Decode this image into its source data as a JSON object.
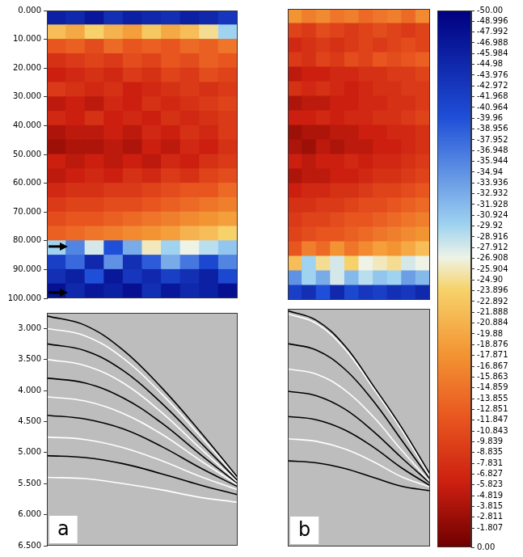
{
  "chart_data": [
    {
      "type": "heatmap",
      "tick_labels": "y",
      "grid": false,
      "xlim": [
        0,
        100
      ],
      "ylim": [
        0,
        100
      ],
      "yticks": [
        {
          "value": 0,
          "label": "0.000"
        },
        {
          "value": 10,
          "label": "10.000"
        },
        {
          "value": 20,
          "label": "20.000"
        },
        {
          "value": 30,
          "label": "30.000"
        },
        {
          "value": 40,
          "label": "40.000"
        },
        {
          "value": 50,
          "label": "50.000"
        },
        {
          "value": 60,
          "label": "60.000"
        },
        {
          "value": 70,
          "label": "70.000"
        },
        {
          "value": 80,
          "label": "80.000"
        },
        {
          "value": 90,
          "label": "90.000"
        },
        {
          "value": 100,
          "label": "100.000"
        }
      ],
      "arrows_at": [
        82,
        98
      ],
      "x": [
        5,
        15,
        25,
        35,
        45,
        55,
        65,
        75,
        85,
        95
      ],
      "y": [
        2.5,
        7.5,
        12.5,
        17.5,
        22.5,
        27.5,
        32.5,
        37.5,
        42.5,
        47.5,
        52.5,
        57.5,
        62.5,
        67.5,
        72.5,
        77.5,
        82.5,
        87.5,
        92.5,
        97.5
      ],
      "cells": [
        [
          -46,
          -45,
          -47,
          -44,
          -46,
          -45,
          -44,
          -46,
          -45,
          -43
        ],
        [
          -22,
          -20,
          -24,
          -21,
          -19,
          -23,
          -20,
          -22,
          -25,
          -30
        ],
        [
          -12,
          -13,
          -11,
          -14,
          -12,
          -13,
          -12,
          -14,
          -13,
          -15
        ],
        [
          -8,
          -9,
          -10,
          -9,
          -11,
          -10,
          -12,
          -11,
          -13,
          -12
        ],
        [
          -6,
          -7,
          -8,
          -7,
          -9,
          -8,
          -10,
          -9,
          -11,
          -10
        ],
        [
          -9,
          -8,
          -7,
          -8,
          -6,
          -7,
          -8,
          -9,
          -8,
          -9
        ],
        [
          -5,
          -6,
          -5,
          -7,
          -6,
          -8,
          -7,
          -8,
          -9,
          -10
        ],
        [
          -7,
          -6,
          -8,
          -6,
          -7,
          -6,
          -8,
          -7,
          -8,
          -9
        ],
        [
          -4,
          -5,
          -5,
          -6,
          -5,
          -7,
          -6,
          -8,
          -7,
          -9
        ],
        [
          -3,
          -4,
          -4,
          -5,
          -4,
          -6,
          -5,
          -7,
          -6,
          -8
        ],
        [
          -6,
          -5,
          -6,
          -5,
          -6,
          -5,
          -7,
          -6,
          -8,
          -9
        ],
        [
          -5,
          -6,
          -7,
          -6,
          -8,
          -7,
          -9,
          -8,
          -10,
          -11
        ],
        [
          -7,
          -8,
          -8,
          -9,
          -9,
          -10,
          -11,
          -12,
          -12,
          -14
        ],
        [
          -9,
          -10,
          -10,
          -11,
          -11,
          -12,
          -13,
          -14,
          -15,
          -16
        ],
        [
          -11,
          -12,
          -12,
          -13,
          -14,
          -15,
          -16,
          -17,
          -18,
          -19
        ],
        [
          -13,
          -14,
          -15,
          -16,
          -17,
          -18,
          -19,
          -21,
          -22,
          -24
        ],
        [
          -30,
          -36,
          -28,
          -40,
          -33,
          -26,
          -30,
          -27,
          -29,
          -31
        ],
        [
          -42,
          -38,
          -45,
          -35,
          -44,
          -39,
          -33,
          -37,
          -41,
          -36
        ],
        [
          -44,
          -46,
          -40,
          -47,
          -43,
          -45,
          -42,
          -44,
          -46,
          -41
        ],
        [
          -48,
          -45,
          -47,
          -46,
          -48,
          -44,
          -47,
          -45,
          -46,
          -48
        ]
      ]
    },
    {
      "type": "heatmap",
      "tick_labels": false,
      "grid": false,
      "xlim": [
        0,
        100
      ],
      "ylim": [
        0,
        100
      ],
      "x": [
        5,
        15,
        25,
        35,
        45,
        55,
        65,
        75,
        85,
        95
      ],
      "y": [
        2.5,
        7.5,
        12.5,
        17.5,
        22.5,
        27.5,
        32.5,
        37.5,
        42.5,
        47.5,
        52.5,
        57.5,
        62.5,
        67.5,
        72.5,
        77.5,
        82.5,
        87.5,
        92.5,
        97.5
      ],
      "cells": [
        [
          -18,
          -16,
          -17,
          -15,
          -16,
          -14,
          -15,
          -16,
          -14,
          -17
        ],
        [
          -10,
          -9,
          -11,
          -10,
          -9,
          -10,
          -11,
          -10,
          -9,
          -10
        ],
        [
          -7,
          -8,
          -9,
          -8,
          -9,
          -10,
          -9,
          -10,
          -11,
          -10
        ],
        [
          -9,
          -8,
          -10,
          -9,
          -11,
          -10,
          -12,
          -11,
          -12,
          -13
        ],
        [
          -5,
          -6,
          -6,
          -7,
          -7,
          -8,
          -8,
          -9,
          -9,
          -10
        ],
        [
          -8,
          -7,
          -8,
          -7,
          -6,
          -7,
          -8,
          -8,
          -9,
          -9
        ],
        [
          -4,
          -5,
          -5,
          -6,
          -6,
          -7,
          -7,
          -8,
          -8,
          -9
        ],
        [
          -6,
          -6,
          -7,
          -6,
          -7,
          -7,
          -8,
          -8,
          -9,
          -10
        ],
        [
          -3,
          -4,
          -4,
          -5,
          -5,
          -6,
          -6,
          -7,
          -7,
          -8
        ],
        [
          -4,
          -3,
          -5,
          -4,
          -5,
          -5,
          -6,
          -6,
          -7,
          -8
        ],
        [
          -6,
          -5,
          -6,
          -6,
          -7,
          -6,
          -7,
          -7,
          -8,
          -9
        ],
        [
          -4,
          -5,
          -5,
          -6,
          -6,
          -7,
          -8,
          -8,
          -9,
          -10
        ],
        [
          -6,
          -7,
          -7,
          -8,
          -8,
          -9,
          -10,
          -10,
          -11,
          -12
        ],
        [
          -8,
          -8,
          -9,
          -9,
          -10,
          -11,
          -11,
          -12,
          -13,
          -14
        ],
        [
          -9,
          -10,
          -10,
          -11,
          -12,
          -12,
          -13,
          -14,
          -15,
          -16
        ],
        [
          -10,
          -11,
          -12,
          -12,
          -13,
          -14,
          -15,
          -16,
          -17,
          -18
        ],
        [
          -12,
          -16,
          -14,
          -18,
          -15,
          -17,
          -19,
          -18,
          -20,
          -22
        ],
        [
          -22,
          -30,
          -25,
          -28,
          -24,
          -27,
          -26,
          -25,
          -28,
          -27
        ],
        [
          -35,
          -30,
          -33,
          -28,
          -32,
          -29,
          -31,
          -30,
          -34,
          -32
        ],
        [
          -42,
          -44,
          -40,
          -45,
          -41,
          -43,
          -42,
          -44,
          -43,
          -45
        ]
      ]
    },
    {
      "type": "line",
      "title": "a",
      "tick_labels": "y",
      "grid": false,
      "xlim": [
        0,
        100
      ],
      "ylim": [
        2.75,
        6.5
      ],
      "yticks": [
        {
          "value": 3,
          "label": "3.000"
        },
        {
          "value": 3.5,
          "label": "3.500"
        },
        {
          "value": 4,
          "label": "4.000"
        },
        {
          "value": 4.5,
          "label": "4.500"
        },
        {
          "value": 5,
          "label": "5.000"
        },
        {
          "value": 5.5,
          "label": "5.500"
        },
        {
          "value": 6,
          "label": "6.000"
        },
        {
          "value": 6.5,
          "label": "6.500"
        }
      ],
      "x": [
        0,
        20,
        40,
        60,
        80,
        100
      ],
      "series": [
        {
          "color": "#000000",
          "values": [
            2.8,
            2.95,
            3.35,
            3.95,
            4.65,
            5.4
          ]
        },
        {
          "color": "#ffffff",
          "values": [
            3.0,
            3.12,
            3.48,
            4.05,
            4.72,
            5.42
          ]
        },
        {
          "color": "#000000",
          "values": [
            3.25,
            3.36,
            3.68,
            4.2,
            4.82,
            5.45
          ]
        },
        {
          "color": "#ffffff",
          "values": [
            3.5,
            3.6,
            3.88,
            4.35,
            4.92,
            5.48
          ]
        },
        {
          "color": "#000000",
          "values": [
            3.8,
            3.88,
            4.12,
            4.52,
            5.02,
            5.5
          ]
        },
        {
          "color": "#ffffff",
          "values": [
            4.1,
            4.17,
            4.37,
            4.7,
            5.12,
            5.52
          ]
        },
        {
          "color": "#000000",
          "values": [
            4.4,
            4.46,
            4.62,
            4.9,
            5.24,
            5.55
          ]
        },
        {
          "color": "#ffffff",
          "values": [
            4.75,
            4.79,
            4.92,
            5.13,
            5.38,
            5.6
          ]
        },
        {
          "color": "#000000",
          "values": [
            5.05,
            5.08,
            5.18,
            5.34,
            5.52,
            5.68
          ]
        },
        {
          "color": "#ffffff",
          "values": [
            5.4,
            5.42,
            5.5,
            5.6,
            5.72,
            5.8
          ]
        }
      ]
    },
    {
      "type": "line",
      "title": "b",
      "tick_labels": false,
      "grid": false,
      "xlim": [
        0,
        100
      ],
      "ylim": [
        2.75,
        6.5
      ],
      "x": [
        0,
        20,
        40,
        60,
        80,
        100
      ],
      "series": [
        {
          "color": "#000000",
          "values": [
            2.78,
            2.93,
            3.33,
            3.96,
            4.62,
            5.36
          ]
        },
        {
          "color": "#ffffff",
          "values": [
            2.83,
            2.98,
            3.38,
            4.0,
            4.66,
            5.4
          ]
        },
        {
          "color": "#000000",
          "values": [
            3.3,
            3.4,
            3.7,
            4.2,
            4.82,
            5.44
          ]
        },
        {
          "color": "#ffffff",
          "values": [
            3.7,
            3.78,
            4.03,
            4.45,
            4.98,
            5.48
          ]
        },
        {
          "color": "#000000",
          "values": [
            4.05,
            4.12,
            4.33,
            4.68,
            5.1,
            5.5
          ]
        },
        {
          "color": "#000000",
          "values": [
            4.45,
            4.5,
            4.66,
            4.93,
            5.26,
            5.54
          ]
        },
        {
          "color": "#ffffff",
          "values": [
            4.8,
            4.84,
            4.96,
            5.16,
            5.4,
            5.56
          ]
        },
        {
          "color": "#000000",
          "values": [
            5.15,
            5.18,
            5.27,
            5.41,
            5.55,
            5.62
          ]
        }
      ]
    },
    {
      "type": "colorbar",
      "ylim": [
        -50,
        0
      ],
      "yticks": [
        {
          "value": -50,
          "label": "-50.00"
        },
        -48.996,
        -47.992,
        -46.988,
        -45.984,
        -44.98,
        -43.976,
        -42.972,
        -41.968,
        -40.964,
        -39.96,
        -38.956,
        -37.952,
        -36.948,
        -35.944,
        -34.94,
        -33.936,
        -32.932,
        -31.928,
        -30.924,
        -29.92,
        -28.916,
        -27.912,
        -26.908,
        -25.904,
        {
          "value": -24.9,
          "label": "-24.90"
        },
        -23.896,
        -22.892,
        -21.888,
        -20.884,
        -19.88,
        -18.876,
        -17.871,
        -16.867,
        -15.863,
        -14.859,
        -13.855,
        -12.851,
        -11.847,
        -10.843,
        -9.839,
        -8.835,
        -7.831,
        -6.827,
        -5.823,
        -4.819,
        -3.815,
        -2.811,
        -1.807,
        {
          "value": 0,
          "label": "0.00"
        }
      ]
    }
  ]
}
